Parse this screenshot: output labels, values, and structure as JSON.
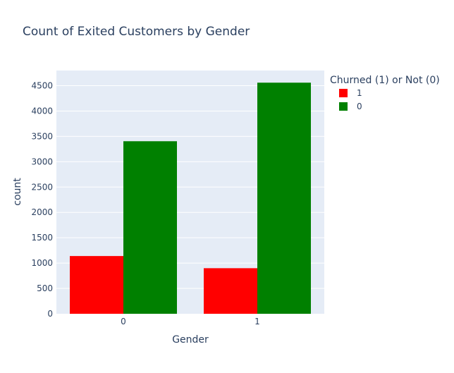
{
  "chart_data": {
    "type": "bar",
    "title": "Count of Exited Customers by Gender",
    "xlabel": "Gender",
    "ylabel": "count",
    "categories": [
      "0",
      "1"
    ],
    "series": [
      {
        "name": "1",
        "color": "#ff0000",
        "values": [
          1139,
          899
        ]
      },
      {
        "name": "0",
        "color": "#008000",
        "values": [
          3404,
          4559
        ]
      }
    ],
    "ylim": [
      0,
      4799
    ],
    "yticks": [
      0,
      500,
      1000,
      1500,
      2000,
      2500,
      3000,
      3500,
      4000,
      4500
    ],
    "legend": {
      "title": "Churned (1) or Not (0)",
      "placement": "top-right"
    },
    "grid": true,
    "plot_background": "#e5ecf6"
  }
}
